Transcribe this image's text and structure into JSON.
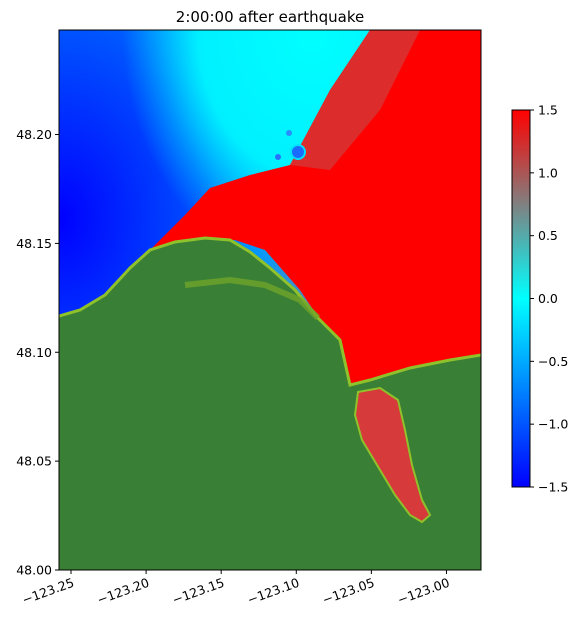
{
  "chart_data": {
    "type": "heatmap",
    "title": "2:00:00 after earthquake",
    "xlabel": "",
    "ylabel": "",
    "xlim": [
      -123.258,
      -122.977
    ],
    "ylim": [
      48.0,
      48.248
    ],
    "x_ticks": [
      {
        "value": -123.25,
        "label": "−123.25"
      },
      {
        "value": -123.2,
        "label": "−123.20"
      },
      {
        "value": -123.15,
        "label": "−123.15"
      },
      {
        "value": -123.1,
        "label": "−123.10"
      },
      {
        "value": -123.05,
        "label": "−123.05"
      },
      {
        "value": -123.0,
        "label": "−123.00"
      }
    ],
    "y_ticks": [
      {
        "value": 48.0,
        "label": "48.00"
      },
      {
        "value": 48.05,
        "label": "48.05"
      },
      {
        "value": 48.1,
        "label": "48.10"
      },
      {
        "value": 48.15,
        "label": "48.15"
      },
      {
        "value": 48.2,
        "label": "48.20"
      }
    ],
    "x_tick_rotation_deg": 20,
    "grid": false,
    "colorbar": {
      "range": [
        -1.5,
        1.5
      ],
      "ticks": [
        {
          "value": 1.5,
          "label": "1.5"
        },
        {
          "value": 1.0,
          "label": "1.0"
        },
        {
          "value": 0.5,
          "label": "0.5"
        },
        {
          "value": 0.0,
          "label": "0.0"
        },
        {
          "value": -0.5,
          "label": "−0.5"
        },
        {
          "value": -1.0,
          "label": "−1.0"
        },
        {
          "value": -1.5,
          "label": "−1.5"
        }
      ],
      "stops": [
        {
          "value": -1.5,
          "color": "#0000ff"
        },
        {
          "value": 0.0,
          "color": "#00ffff"
        },
        {
          "value": 0.75,
          "color": "#808080"
        },
        {
          "value": 1.5,
          "color": "#ff0000"
        }
      ],
      "placement": "right"
    },
    "land_color": "#3a7f36",
    "shore_color": "#7fb324"
  }
}
